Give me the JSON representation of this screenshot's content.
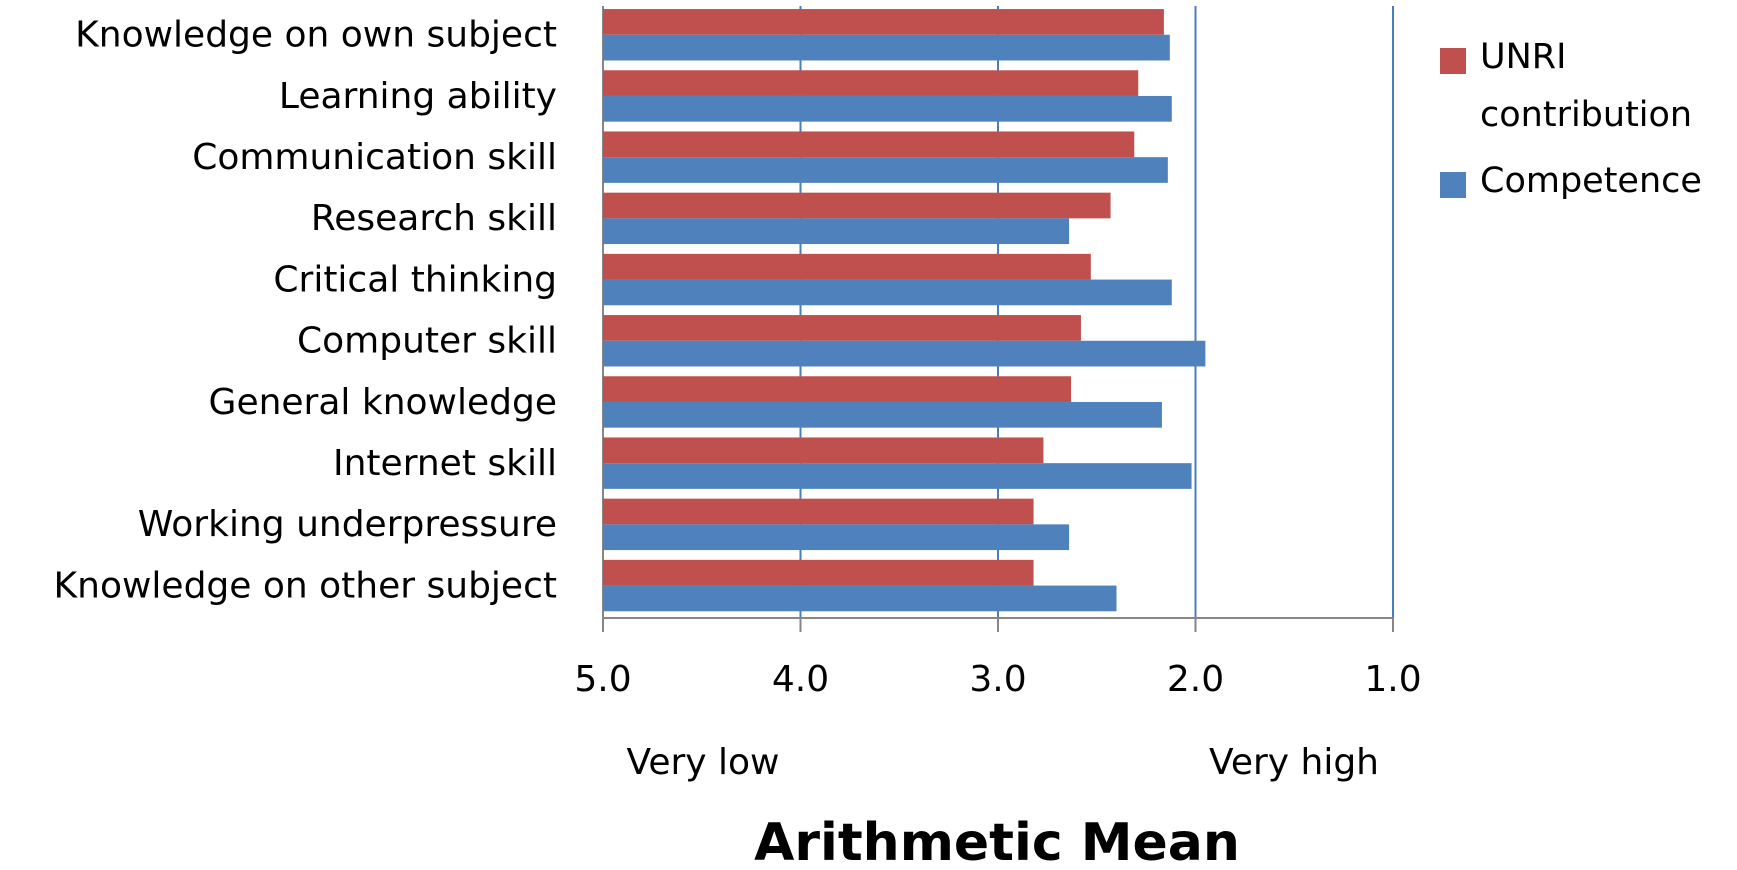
{
  "chart_data": {
    "type": "barh",
    "xlabel": "Arithmetic Mean",
    "annotations": [
      "Very low",
      "Very high"
    ],
    "categories": [
      "Knowledge on own subject",
      "Learning ability",
      "Communication skill",
      "Research skill",
      "Critical thinking",
      "Computer skill",
      "General knowledge",
      "Internet skill",
      "Working underpressure",
      "Knowledge on other subject"
    ],
    "series": [
      {
        "name": "UNRI contribution",
        "color": "#c0504d",
        "values": [
          2.16,
          2.29,
          2.31,
          2.43,
          2.53,
          2.58,
          2.63,
          2.77,
          2.82,
          2.82
        ]
      },
      {
        "name": "Competence",
        "color": "#4f81bd",
        "values": [
          2.13,
          2.12,
          2.14,
          2.64,
          2.12,
          1.95,
          2.17,
          2.02,
          2.64,
          2.4
        ]
      }
    ],
    "xlim": [
      5,
      1
    ],
    "xticks": [
      {
        "value": 5,
        "label": "5.0"
      },
      {
        "value": 4,
        "label": "4.0"
      },
      {
        "value": 3,
        "label": "3.0"
      },
      {
        "value": 2,
        "label": "2.0"
      },
      {
        "value": 1,
        "label": "1.0"
      }
    ],
    "grid": true,
    "legend": "right"
  }
}
